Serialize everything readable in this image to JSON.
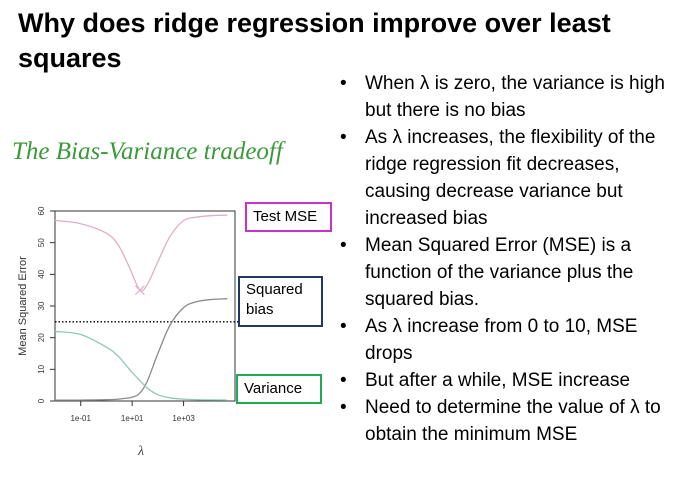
{
  "slide": {
    "title": "Why does ridge regression improve over least squares",
    "bullets": [
      "When λ is zero, the variance is high but there is no bias",
      "As λ increases, the flexibility of the ridge regression fit decreases, causing decrease variance but increased bias",
      "Mean Squared Error (MSE) is a function of the variance plus the squared bias.",
      "As λ increase from 0 to 10, MSE drops",
      "But after a while, MSE increase",
      "Need to determine the value of λ to obtain the minimum MSE"
    ]
  },
  "figure": {
    "subtitle": "The Bias-Variance tradeoff",
    "callouts": {
      "test_mse": "Test MSE",
      "squared_bias": "Squared bias",
      "variance": "Variance"
    }
  },
  "chart_data": {
    "type": "line",
    "xlabel": "λ",
    "ylabel": "Mean Squared Error",
    "x_scale": "log",
    "xlim": [
      0.01,
      100000
    ],
    "ylim": [
      0,
      60
    ],
    "x_ticks": [
      {
        "value": 0.1,
        "label": "1e-01"
      },
      {
        "value": 10,
        "label": "1e+01"
      },
      {
        "value": 1000,
        "label": "1e+03"
      }
    ],
    "y_ticks": [
      0,
      10,
      20,
      30,
      40,
      50,
      60
    ],
    "reference_line_y": 25,
    "min_marker": {
      "x": 20,
      "y": 35
    },
    "colors": {
      "test_mse": "#e0aec8",
      "squared_bias": "#8a8a8a",
      "variance": "#8fcab0",
      "reference": "#000000"
    },
    "series": [
      {
        "key": "test_mse",
        "x": [
          0.01,
          0.1,
          1,
          3,
          8,
          20,
          40,
          100,
          300,
          1000,
          3000,
          10000,
          50000
        ],
        "values": [
          57,
          56,
          53,
          49,
          42,
          35,
          37,
          44,
          52,
          57,
          58,
          58.5,
          58.7
        ]
      },
      {
        "key": "squared_bias",
        "x": [
          0.01,
          0.1,
          1,
          3,
          10,
          20,
          40,
          100,
          300,
          1000,
          3000,
          10000,
          50000
        ],
        "values": [
          0.3,
          0.3,
          0.4,
          0.6,
          1.2,
          2.5,
          6.5,
          15,
          24,
          29.5,
          31.3,
          32,
          32.3
        ]
      },
      {
        "key": "variance",
        "x": [
          0.01,
          0.1,
          1,
          3,
          10,
          20,
          40,
          100,
          300,
          1000,
          3000,
          10000,
          50000
        ],
        "values": [
          22,
          21,
          17,
          14,
          9,
          6.5,
          4,
          2,
          1,
          0.6,
          0.4,
          0.35,
          0.3
        ]
      }
    ]
  }
}
